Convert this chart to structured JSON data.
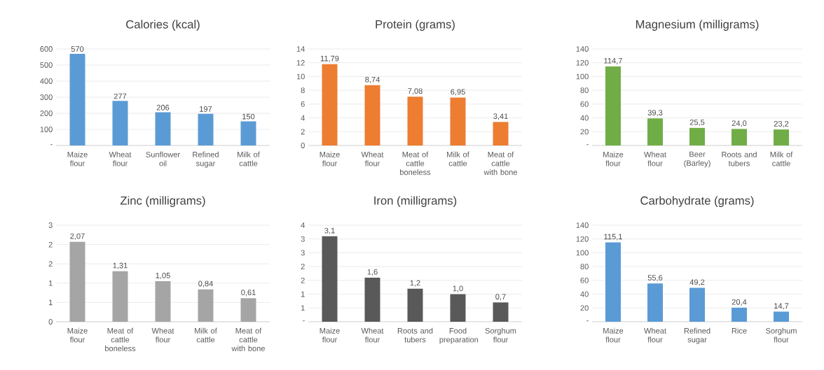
{
  "chart_data": [
    {
      "type": "bar",
      "title": "Calories (kcal)",
      "categories": [
        "Maize flour",
        "Wheat flour",
        "Sunflower oil",
        "Refined sugar",
        "Milk of cattle"
      ],
      "values": [
        570,
        277,
        206,
        197,
        150
      ],
      "value_labels": [
        "570",
        "277",
        "206",
        "197",
        "150"
      ],
      "color": "#5b9bd5",
      "ylim": [
        0,
        600
      ],
      "yticks": [
        {
          "value": 0,
          "label": "-"
        },
        100,
        200,
        300,
        400,
        500,
        600
      ],
      "grid": "y"
    },
    {
      "type": "bar",
      "title": "Protein (grams)",
      "categories": [
        "Maize flour",
        "Wheat flour",
        "Meat of cattle boneless",
        "Milk of cattle",
        "Meat of cattle with bone"
      ],
      "values": [
        11.79,
        8.74,
        7.08,
        6.95,
        3.41
      ],
      "value_labels": [
        "11,79",
        "8,74",
        "7,08",
        "6,95",
        "3,41"
      ],
      "color": "#ed7d31",
      "ylim": [
        0,
        14
      ],
      "yticks": [
        0,
        2,
        4,
        6,
        8,
        10,
        12,
        14
      ],
      "grid": "y"
    },
    {
      "type": "bar",
      "title": "Magnesium (milligrams)",
      "categories": [
        "Maize flour",
        "Wheat flour",
        "Beer (Barley)",
        "Roots and tubers",
        "Milk of cattle"
      ],
      "values": [
        114.7,
        39.3,
        25.5,
        24.0,
        23.2
      ],
      "value_labels": [
        "114,7",
        "39,3",
        "25,5",
        "24,0",
        "23,2"
      ],
      "color": "#70ad47",
      "ylim": [
        0,
        140
      ],
      "yticks": [
        {
          "value": 0,
          "label": "-"
        },
        20,
        40,
        60,
        80,
        100,
        120,
        140
      ],
      "grid": "y"
    },
    {
      "type": "bar",
      "title": "Zinc (milligrams)",
      "categories": [
        "Maize flour",
        "Meat of cattle boneless",
        "Wheat flour",
        "Milk of cattle",
        "Meat of cattle with bone"
      ],
      "values": [
        2.07,
        1.31,
        1.05,
        0.84,
        0.61
      ],
      "value_labels": [
        "2,07",
        "1,31",
        "1,05",
        "0,84",
        "0,61"
      ],
      "color": "#a5a5a5",
      "ylim": [
        0,
        2.5
      ],
      "yticks": [
        0,
        {
          "value": 0.5,
          "label": "1"
        },
        1,
        {
          "value": 1.5,
          "label": "2"
        },
        2,
        {
          "value": 2.5,
          "label": "3"
        }
      ],
      "grid": "y"
    },
    {
      "type": "bar",
      "title": "Iron (milligrams)",
      "categories": [
        "Maize flour",
        "Wheat flour",
        "Roots and tubers",
        "Food preparation",
        "Sorghum flour"
      ],
      "values": [
        3.1,
        1.6,
        1.2,
        1.0,
        0.7
      ],
      "value_labels": [
        "3,1",
        "1,6",
        "1,2",
        "1,0",
        "0,7"
      ],
      "color": "#595959",
      "ylim": [
        0,
        3.5
      ],
      "yticks": [
        {
          "value": 0,
          "label": "-"
        },
        {
          "value": 0.5,
          "label": "1"
        },
        1,
        {
          "value": 1.5,
          "label": "2"
        },
        2,
        {
          "value": 2.5,
          "label": "3"
        },
        3,
        {
          "value": 3.5,
          "label": "4"
        }
      ],
      "grid": "y"
    },
    {
      "type": "bar",
      "title": "Carbohydrate (grams)",
      "categories": [
        "Maize flour",
        "Wheat flour",
        "Refined sugar",
        "Rice",
        "Sorghum flour"
      ],
      "values": [
        115.1,
        55.6,
        49.2,
        20.4,
        14.7
      ],
      "value_labels": [
        "115,1",
        "55,6",
        "49,2",
        "20,4",
        "14,7"
      ],
      "color": "#5b9bd5",
      "ylim": [
        0,
        140
      ],
      "yticks": [
        {
          "value": 0,
          "label": "-"
        },
        20,
        40,
        60,
        80,
        100,
        120,
        140
      ],
      "grid": "y"
    }
  ]
}
